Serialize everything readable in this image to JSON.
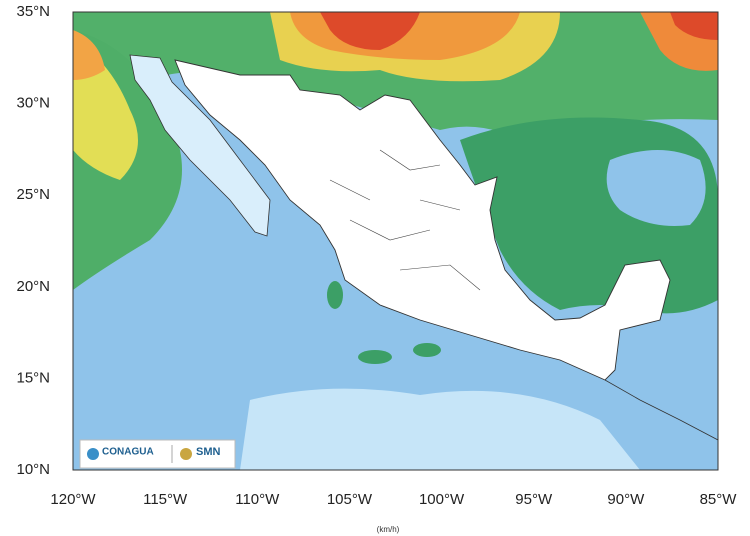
{
  "map": {
    "lat_labels": [
      "35°N",
      "30°N",
      "25°N",
      "20°N",
      "15°N",
      "10°N"
    ],
    "lon_labels": [
      "120°W",
      "115°W",
      "110°W",
      "105°W",
      "100°W",
      "95°W",
      "90°W",
      "85°W"
    ],
    "logos": [
      "CONAGUA",
      "SMN"
    ],
    "unit": "(km/h)"
  }
}
